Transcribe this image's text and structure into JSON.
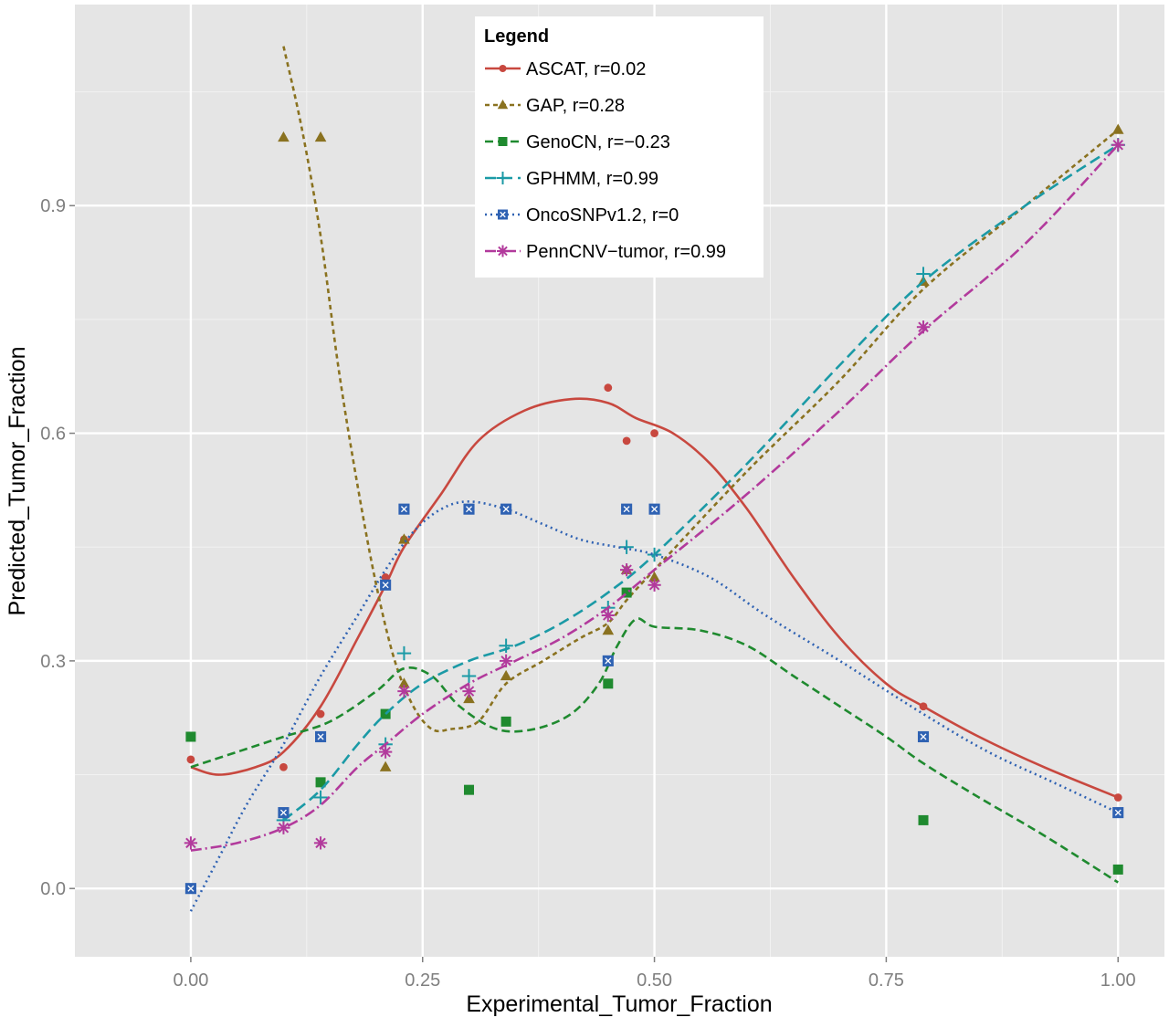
{
  "chart_data": {
    "type": "scatter",
    "xlabel": "Experimental_Tumor_Fraction",
    "ylabel": "Predicted_Tumor_Fraction",
    "xlim": [
      -0.125,
      1.05
    ],
    "ylim": [
      -0.09,
      1.165
    ],
    "x_ticks": [
      0.0,
      0.25,
      0.5,
      0.75,
      1.0
    ],
    "x_tick_labels": [
      "0.00",
      "0.25",
      "0.50",
      "0.75",
      "1.00"
    ],
    "y_ticks": [
      0.0,
      0.3,
      0.6,
      0.9
    ],
    "y_tick_labels": [
      "0.0",
      "0.3",
      "0.6",
      "0.9"
    ],
    "grid": true,
    "background": "#e5e5e5",
    "legend": {
      "title": "Legend",
      "position": "top-center"
    },
    "series": [
      {
        "name": "ASCAT, r=0.02",
        "color": "#c8483f",
        "marker": "circle",
        "dash": "",
        "points": [
          [
            0.0,
            0.17
          ],
          [
            0.1,
            0.16
          ],
          [
            0.14,
            0.23
          ],
          [
            0.21,
            0.41
          ],
          [
            0.23,
            0.46
          ],
          [
            0.45,
            0.66
          ],
          [
            0.47,
            0.59
          ],
          [
            0.5,
            0.6
          ],
          [
            0.79,
            0.24
          ],
          [
            1.0,
            0.12
          ]
        ],
        "curve": [
          [
            0.0,
            0.16
          ],
          [
            0.03,
            0.15
          ],
          [
            0.07,
            0.16
          ],
          [
            0.1,
            0.18
          ],
          [
            0.14,
            0.24
          ],
          [
            0.18,
            0.33
          ],
          [
            0.21,
            0.4
          ],
          [
            0.23,
            0.45
          ],
          [
            0.27,
            0.52
          ],
          [
            0.31,
            0.59
          ],
          [
            0.36,
            0.63
          ],
          [
            0.41,
            0.645
          ],
          [
            0.45,
            0.64
          ],
          [
            0.48,
            0.62
          ],
          [
            0.52,
            0.6
          ],
          [
            0.56,
            0.56
          ],
          [
            0.6,
            0.5
          ],
          [
            0.65,
            0.41
          ],
          [
            0.7,
            0.33
          ],
          [
            0.75,
            0.27
          ],
          [
            0.79,
            0.24
          ],
          [
            0.85,
            0.2
          ],
          [
            0.92,
            0.16
          ],
          [
            1.0,
            0.12
          ]
        ]
      },
      {
        "name": "GAP, r=0.28",
        "color": "#8a7220",
        "marker": "triangle",
        "dash": "5,4",
        "points": [
          [
            0.1,
            0.99
          ],
          [
            0.14,
            0.99
          ],
          [
            0.21,
            0.16
          ],
          [
            0.23,
            0.27
          ],
          [
            0.23,
            0.46
          ],
          [
            0.3,
            0.25
          ],
          [
            0.34,
            0.28
          ],
          [
            0.45,
            0.34
          ],
          [
            0.47,
            0.42
          ],
          [
            0.5,
            0.41
          ],
          [
            0.79,
            0.8
          ],
          [
            1.0,
            1.0
          ]
        ],
        "curve": [
          [
            0.1,
            1.11
          ],
          [
            0.12,
            1.0
          ],
          [
            0.14,
            0.86
          ],
          [
            0.16,
            0.68
          ],
          [
            0.18,
            0.53
          ],
          [
            0.2,
            0.4
          ],
          [
            0.22,
            0.3
          ],
          [
            0.24,
            0.24
          ],
          [
            0.26,
            0.21
          ],
          [
            0.28,
            0.21
          ],
          [
            0.31,
            0.22
          ],
          [
            0.34,
            0.27
          ],
          [
            0.38,
            0.3
          ],
          [
            0.42,
            0.33
          ],
          [
            0.45,
            0.35
          ],
          [
            0.47,
            0.38
          ],
          [
            0.5,
            0.42
          ],
          [
            0.6,
            0.55
          ],
          [
            0.7,
            0.67
          ],
          [
            0.79,
            0.79
          ],
          [
            0.9,
            0.9
          ],
          [
            1.0,
            1.0
          ]
        ]
      },
      {
        "name": "GenoCN, r=−0.23",
        "color": "#1f8a2f",
        "marker": "square",
        "dash": "9,5",
        "points": [
          [
            0.0,
            0.2
          ],
          [
            0.1,
            0.1
          ],
          [
            0.14,
            0.14
          ],
          [
            0.21,
            0.23
          ],
          [
            0.3,
            0.13
          ],
          [
            0.34,
            0.22
          ],
          [
            0.45,
            0.27
          ],
          [
            0.47,
            0.39
          ],
          [
            0.79,
            0.09
          ],
          [
            1.0,
            0.025
          ]
        ],
        "curve": [
          [
            0.0,
            0.16
          ],
          [
            0.05,
            0.18
          ],
          [
            0.1,
            0.2
          ],
          [
            0.15,
            0.22
          ],
          [
            0.2,
            0.26
          ],
          [
            0.23,
            0.29
          ],
          [
            0.26,
            0.28
          ],
          [
            0.29,
            0.24
          ],
          [
            0.33,
            0.21
          ],
          [
            0.37,
            0.21
          ],
          [
            0.41,
            0.23
          ],
          [
            0.44,
            0.27
          ],
          [
            0.46,
            0.32
          ],
          [
            0.48,
            0.355
          ],
          [
            0.5,
            0.345
          ],
          [
            0.55,
            0.34
          ],
          [
            0.6,
            0.32
          ],
          [
            0.65,
            0.28
          ],
          [
            0.7,
            0.24
          ],
          [
            0.75,
            0.2
          ],
          [
            0.79,
            0.165
          ],
          [
            0.85,
            0.12
          ],
          [
            0.92,
            0.07
          ],
          [
            1.0,
            0.008
          ]
        ]
      },
      {
        "name": "GPHMM, r=0.99",
        "color": "#1b9aa6",
        "marker": "plus",
        "dash": "12,6",
        "points": [
          [
            0.1,
            0.09
          ],
          [
            0.14,
            0.12
          ],
          [
            0.21,
            0.19
          ],
          [
            0.23,
            0.31
          ],
          [
            0.3,
            0.28
          ],
          [
            0.34,
            0.32
          ],
          [
            0.45,
            0.37
          ],
          [
            0.47,
            0.45
          ],
          [
            0.5,
            0.44
          ],
          [
            0.79,
            0.81
          ],
          [
            1.0,
            0.98
          ]
        ],
        "curve": [
          [
            0.1,
            0.09
          ],
          [
            0.14,
            0.13
          ],
          [
            0.18,
            0.19
          ],
          [
            0.21,
            0.23
          ],
          [
            0.25,
            0.27
          ],
          [
            0.3,
            0.3
          ],
          [
            0.35,
            0.32
          ],
          [
            0.4,
            0.35
          ],
          [
            0.45,
            0.39
          ],
          [
            0.5,
            0.44
          ],
          [
            0.6,
            0.56
          ],
          [
            0.7,
            0.69
          ],
          [
            0.79,
            0.8
          ],
          [
            0.9,
            0.9
          ],
          [
            1.0,
            0.98
          ]
        ]
      },
      {
        "name": "OncoSNPv1.2, r=0",
        "color": "#2f62b3",
        "marker": "boxed-x",
        "dash": "2,4",
        "points": [
          [
            0.0,
            0.0
          ],
          [
            0.1,
            0.1
          ],
          [
            0.14,
            0.2
          ],
          [
            0.21,
            0.4
          ],
          [
            0.23,
            0.5
          ],
          [
            0.3,
            0.5
          ],
          [
            0.34,
            0.5
          ],
          [
            0.45,
            0.3
          ],
          [
            0.47,
            0.5
          ],
          [
            0.5,
            0.5
          ],
          [
            0.79,
            0.2
          ],
          [
            1.0,
            0.1
          ]
        ],
        "curve": [
          [
            0.0,
            -0.03
          ],
          [
            0.03,
            0.04
          ],
          [
            0.06,
            0.11
          ],
          [
            0.1,
            0.19
          ],
          [
            0.14,
            0.28
          ],
          [
            0.18,
            0.36
          ],
          [
            0.21,
            0.42
          ],
          [
            0.24,
            0.47
          ],
          [
            0.27,
            0.5
          ],
          [
            0.3,
            0.51
          ],
          [
            0.34,
            0.5
          ],
          [
            0.38,
            0.48
          ],
          [
            0.42,
            0.46
          ],
          [
            0.46,
            0.45
          ],
          [
            0.5,
            0.44
          ],
          [
            0.56,
            0.41
          ],
          [
            0.62,
            0.36
          ],
          [
            0.7,
            0.3
          ],
          [
            0.79,
            0.23
          ],
          [
            0.86,
            0.18
          ],
          [
            0.93,
            0.14
          ],
          [
            1.0,
            0.1
          ]
        ]
      },
      {
        "name": "PennCNV−tumor, r=0.99",
        "color": "#b23a9c",
        "marker": "asterisk",
        "dash": "12,4,2,4",
        "points": [
          [
            0.0,
            0.06
          ],
          [
            0.1,
            0.08
          ],
          [
            0.14,
            0.06
          ],
          [
            0.21,
            0.18
          ],
          [
            0.23,
            0.26
          ],
          [
            0.3,
            0.26
          ],
          [
            0.34,
            0.3
          ],
          [
            0.45,
            0.36
          ],
          [
            0.47,
            0.42
          ],
          [
            0.5,
            0.4
          ],
          [
            0.79,
            0.74
          ],
          [
            1.0,
            0.98
          ]
        ],
        "curve": [
          [
            0.0,
            0.05
          ],
          [
            0.05,
            0.06
          ],
          [
            0.1,
            0.08
          ],
          [
            0.14,
            0.11
          ],
          [
            0.18,
            0.16
          ],
          [
            0.21,
            0.19
          ],
          [
            0.25,
            0.23
          ],
          [
            0.3,
            0.27
          ],
          [
            0.35,
            0.3
          ],
          [
            0.4,
            0.33
          ],
          [
            0.45,
            0.37
          ],
          [
            0.5,
            0.42
          ],
          [
            0.6,
            0.52
          ],
          [
            0.7,
            0.63
          ],
          [
            0.79,
            0.735
          ],
          [
            0.9,
            0.85
          ],
          [
            1.0,
            0.98
          ]
        ]
      }
    ]
  }
}
